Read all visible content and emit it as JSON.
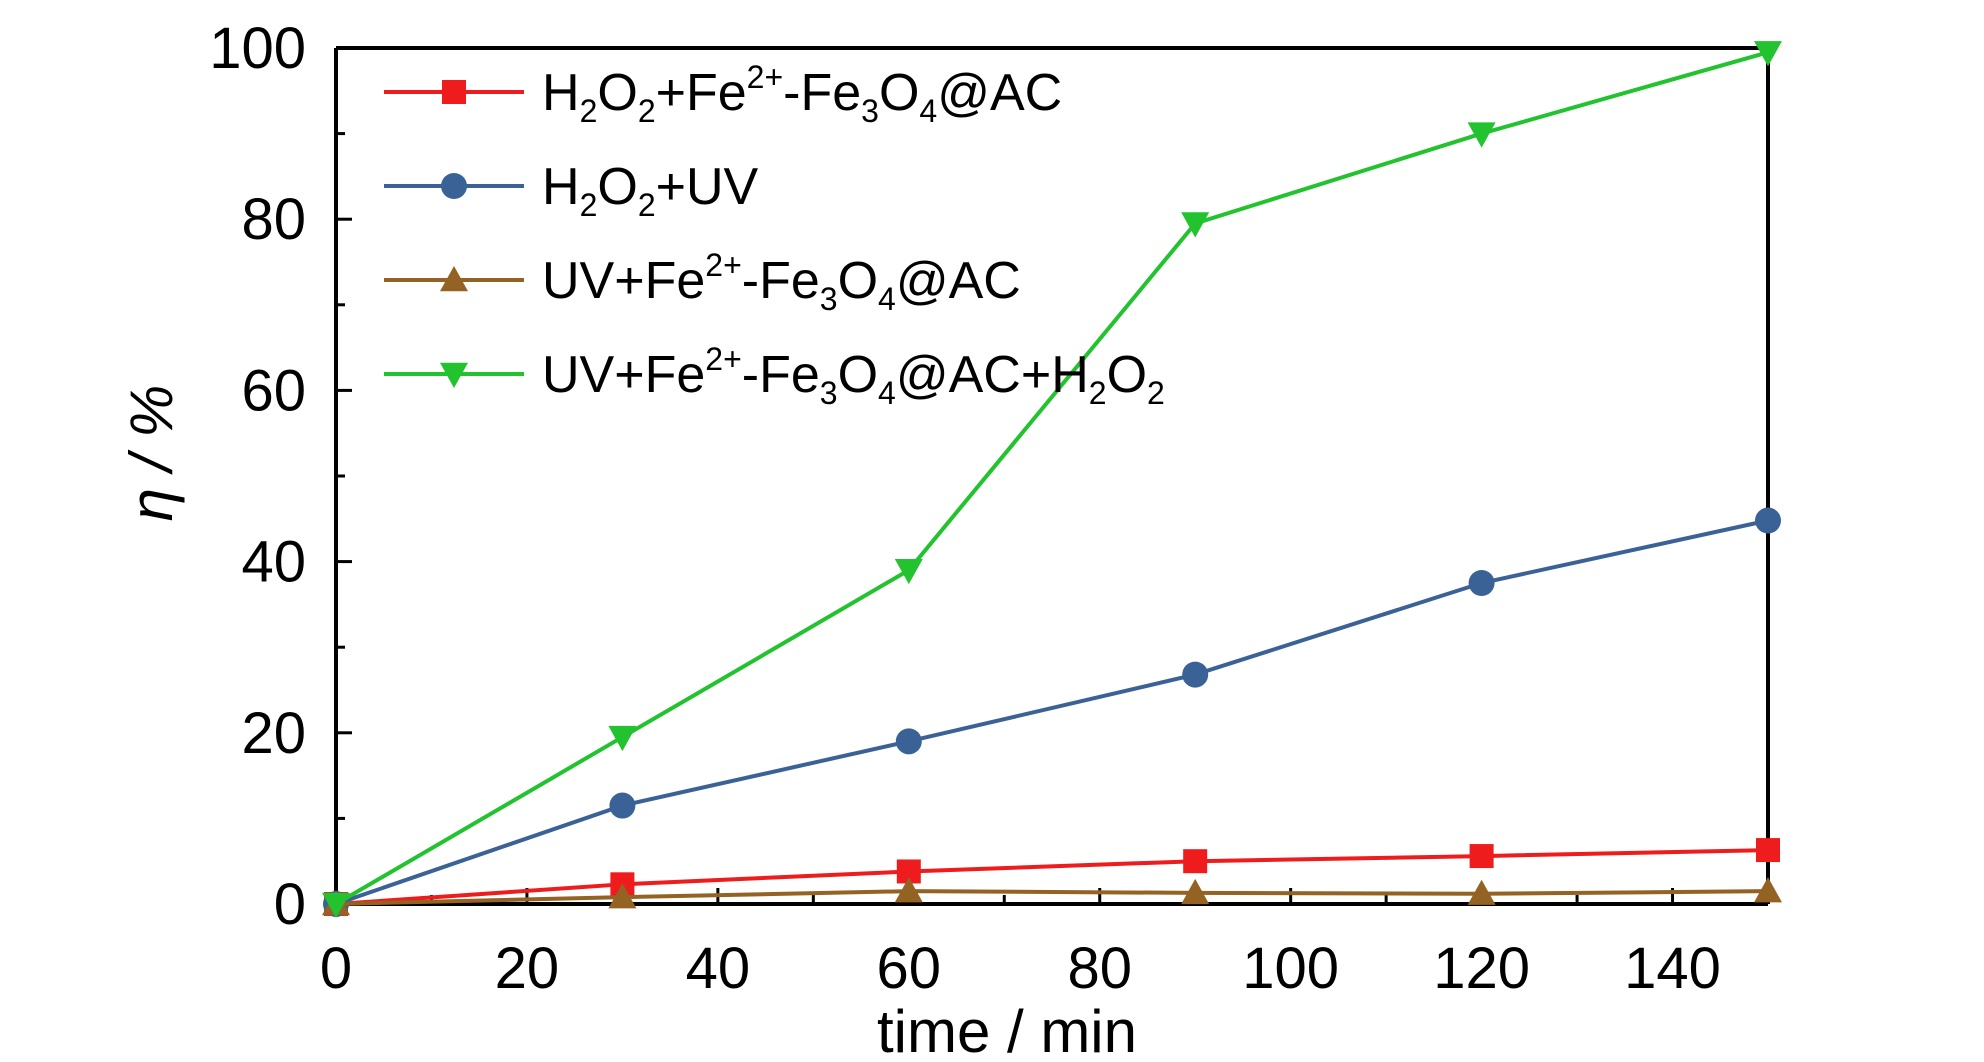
{
  "chart_data": {
    "type": "line",
    "xlabel": "time / min",
    "ylabel": "η / %",
    "xlim": [
      0,
      150
    ],
    "ylim": [
      0,
      100
    ],
    "x_ticks": [
      0,
      20,
      40,
      60,
      80,
      100,
      120,
      140
    ],
    "y_ticks": [
      0,
      20,
      40,
      60,
      80,
      100
    ],
    "x_tick_labels": [
      "0",
      "20",
      "40",
      "60",
      "80",
      "100",
      "120",
      "140"
    ],
    "y_tick_labels": [
      "0",
      "20",
      "40",
      "60",
      "80",
      "100"
    ],
    "grid": false,
    "legend_position": "top-left",
    "x": [
      0,
      30,
      60,
      90,
      120,
      150
    ],
    "series": [
      {
        "name": "H2O2+Fe2+-Fe3O4@AC",
        "label_parts": [
          [
            "H",
            ""
          ],
          [
            "2",
            "sub"
          ],
          [
            "O",
            ""
          ],
          [
            "2",
            "sub"
          ],
          [
            "+Fe",
            ""
          ],
          [
            "2+",
            "sup"
          ],
          [
            "-Fe",
            ""
          ],
          [
            "3",
            "sub"
          ],
          [
            "O",
            ""
          ],
          [
            "4",
            "sub"
          ],
          [
            "@AC",
            ""
          ]
        ],
        "values": [
          0,
          2.3,
          3.8,
          5.0,
          5.6,
          6.3
        ],
        "color": "#ee1c1c",
        "marker": "square"
      },
      {
        "name": "H2O2+UV",
        "label_parts": [
          [
            "H",
            ""
          ],
          [
            "2",
            "sub"
          ],
          [
            "O",
            ""
          ],
          [
            "2",
            "sub"
          ],
          [
            "+UV",
            ""
          ]
        ],
        "values": [
          0,
          11.5,
          19.0,
          26.8,
          37.5,
          44.8
        ],
        "color": "#3b6297",
        "marker": "circle"
      },
      {
        "name": "UV+Fe2+-Fe3O4@AC",
        "label_parts": [
          [
            "UV+Fe",
            ""
          ],
          [
            "2+",
            "sup"
          ],
          [
            "-Fe",
            ""
          ],
          [
            "3",
            "sub"
          ],
          [
            "O",
            ""
          ],
          [
            "4",
            "sub"
          ],
          [
            "@AC",
            ""
          ]
        ],
        "values": [
          0,
          0.8,
          1.5,
          1.3,
          1.2,
          1.5
        ],
        "color": "#946222",
        "marker": "triangle-up"
      },
      {
        "name": "UV+Fe2+-Fe3O4@AC+H2O2",
        "label_parts": [
          [
            "UV+Fe",
            ""
          ],
          [
            "2+",
            "sup"
          ],
          [
            "-Fe",
            ""
          ],
          [
            "3",
            "sub"
          ],
          [
            "O",
            ""
          ],
          [
            "4",
            "sub"
          ],
          [
            "@AC+H",
            ""
          ],
          [
            "2",
            "sub"
          ],
          [
            "O",
            ""
          ],
          [
            "2",
            "sub"
          ]
        ],
        "values": [
          0,
          19.5,
          39.0,
          79.5,
          90.0,
          99.5
        ],
        "color": "#22c32e",
        "marker": "triangle-down"
      }
    ]
  }
}
